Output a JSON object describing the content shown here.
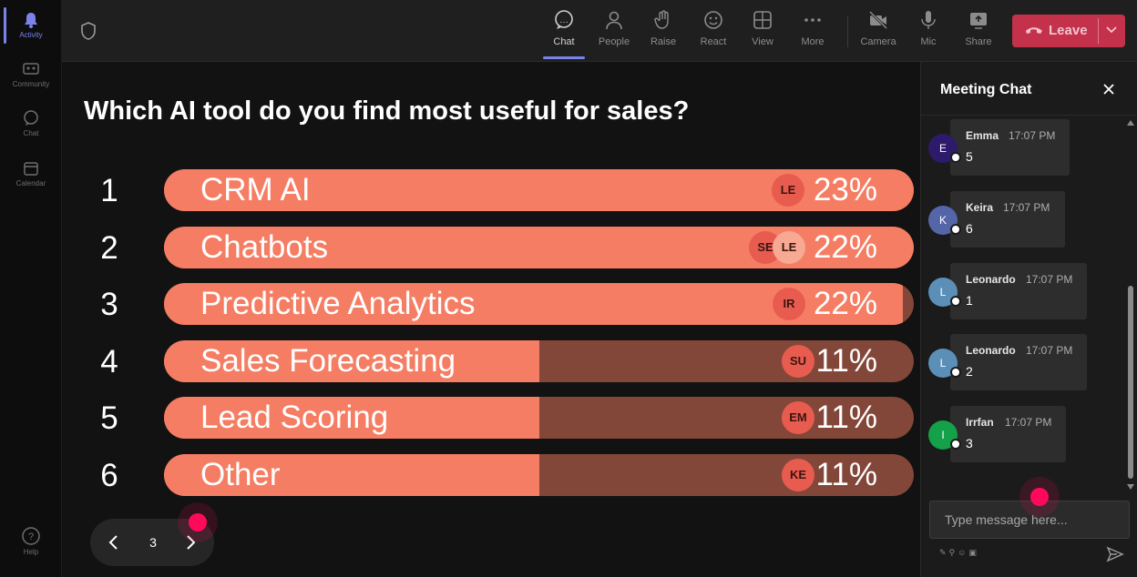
{
  "rail": {
    "items": [
      {
        "label": "Activity",
        "icon": "bell-icon"
      },
      {
        "label": "Community",
        "icon": "community-icon"
      },
      {
        "label": "Chat",
        "icon": "chat-icon"
      },
      {
        "label": "Calendar",
        "icon": "calendar-icon"
      },
      {
        "label": "Help",
        "icon": "help-icon"
      }
    ],
    "accent": "#7b83eb"
  },
  "toolbar": {
    "chat": "Chat",
    "people": "People",
    "raise": "Raise",
    "react": "React",
    "view": "View",
    "more": "More",
    "camera": "Camera",
    "mic": "Mic",
    "share": "Share",
    "leave": "Leave",
    "leave_color": "#c4314b"
  },
  "poll": {
    "question": "Which AI tool do you find most useful for sales?",
    "bar_color": "#f57d63",
    "track_color": "#834739",
    "options": [
      {
        "num": "1",
        "label": "CRM AI",
        "pct": "23%",
        "fill": 1.0,
        "chips": [
          "LE"
        ]
      },
      {
        "num": "2",
        "label": "Chatbots",
        "pct": "22%",
        "fill": 1.0,
        "chips": [
          "SE",
          "LE"
        ]
      },
      {
        "num": "3",
        "label": "Predictive Analytics",
        "pct": "22%",
        "fill": 0.985,
        "chips": [
          "IR"
        ]
      },
      {
        "num": "4",
        "label": "Sales Forecasting",
        "pct": "11%",
        "fill": 0.5,
        "chips": [
          "SU"
        ]
      },
      {
        "num": "5",
        "label": "Lead Scoring",
        "pct": "11%",
        "fill": 0.5,
        "chips": [
          "EM"
        ]
      },
      {
        "num": "6",
        "label": "Other",
        "pct": "11%",
        "fill": 0.5,
        "chips": [
          "KE"
        ]
      }
    ]
  },
  "pager": {
    "page": "3"
  },
  "chat": {
    "title": "Meeting Chat",
    "messages": [
      {
        "initial": "E",
        "name": "Emma",
        "time": "17:07 PM",
        "text": "5",
        "avatar_color": "#2e1a6b"
      },
      {
        "initial": "K",
        "name": "Keira",
        "time": "17:07 PM",
        "text": "6",
        "avatar_color": "#5566a8"
      },
      {
        "initial": "L",
        "name": "Leonardo",
        "time": "17:07 PM",
        "text": "1",
        "avatar_color": "#5b8fb8"
      },
      {
        "initial": "L",
        "name": "Leonardo",
        "time": "17:07 PM",
        "text": "2",
        "avatar_color": "#5b8fb8"
      },
      {
        "initial": "I",
        "name": "Irrfan",
        "time": "17:07 PM",
        "text": "3",
        "avatar_color": "#15a04a"
      }
    ],
    "input_placeholder": "Type message here..."
  }
}
